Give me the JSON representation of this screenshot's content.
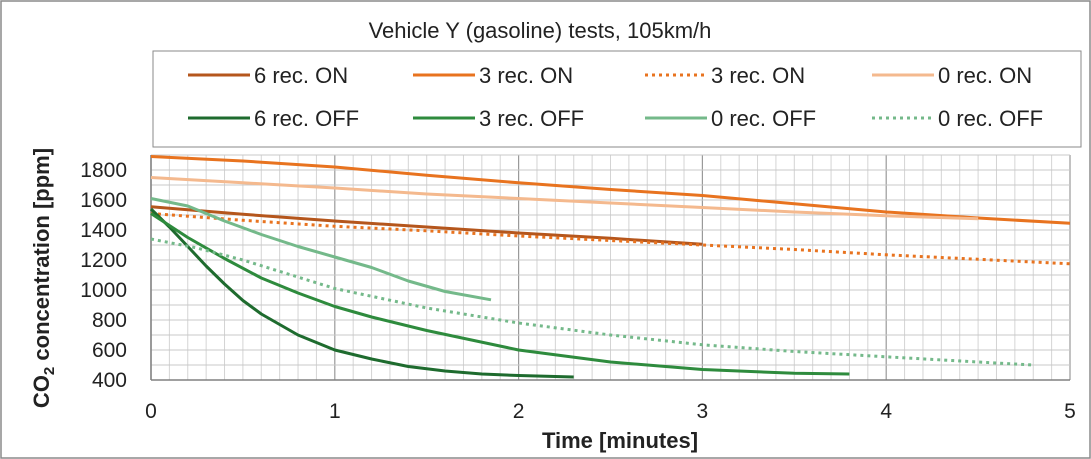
{
  "chart_data": {
    "type": "line",
    "title": "Vehicle Y (gasoline) tests, 105km/h",
    "xlabel": "Time [minutes]",
    "ylabel_main": "CO",
    "ylabel_sub": "2",
    "ylabel_rest": " concentration [ppm]",
    "xlim": [
      0,
      5
    ],
    "ylim": [
      400,
      1900
    ],
    "xticks": [
      "0",
      "1",
      "2",
      "3",
      "4",
      "5"
    ],
    "yticks": [
      "400",
      "600",
      "800",
      "1000",
      "1200",
      "1400",
      "1600",
      "1800"
    ],
    "grid": true,
    "legend_position": "top",
    "series": [
      {
        "name": "6 rec. ON",
        "color": "#b5561c",
        "dash": "solid",
        "width": 3,
        "x": [
          0,
          0.5,
          1,
          1.5,
          2,
          2.5,
          3
        ],
        "y": [
          1555,
          1505,
          1460,
          1420,
          1380,
          1345,
          1305
        ]
      },
      {
        "name": "3 rec. ON",
        "color": "#e8731f",
        "dash": "solid",
        "width": 3,
        "x": [
          0,
          0.5,
          1,
          1.5,
          2,
          2.5,
          3,
          3.5,
          4,
          4.5,
          5
        ],
        "y": [
          1890,
          1860,
          1820,
          1765,
          1715,
          1670,
          1630,
          1575,
          1520,
          1480,
          1445
        ]
      },
      {
        "name": "3 rec. ON",
        "color": "#e8731f",
        "dash": "dotted",
        "width": 3,
        "x": [
          0,
          0.5,
          1,
          1.5,
          2,
          2.5,
          3,
          3.5,
          4,
          4.5,
          5
        ],
        "y": [
          1510,
          1465,
          1425,
          1395,
          1360,
          1330,
          1300,
          1270,
          1235,
          1205,
          1175
        ]
      },
      {
        "name": "0 rec. ON",
        "color": "#f4b98e",
        "dash": "solid",
        "width": 3,
        "x": [
          0,
          0.5,
          1,
          1.5,
          2,
          2.5,
          3,
          3.5,
          4,
          4.5
        ],
        "y": [
          1750,
          1715,
          1680,
          1640,
          1610,
          1580,
          1550,
          1520,
          1495,
          1475
        ]
      },
      {
        "name": "6 rec. OFF",
        "color": "#1e6b2e",
        "dash": "solid",
        "width": 3,
        "x": [
          0,
          0.1,
          0.2,
          0.3,
          0.4,
          0.5,
          0.6,
          0.8,
          1.0,
          1.2,
          1.4,
          1.6,
          1.8,
          2.0,
          2.3
        ],
        "y": [
          1540,
          1420,
          1290,
          1160,
          1040,
          930,
          840,
          700,
          600,
          540,
          490,
          460,
          440,
          430,
          420
        ]
      },
      {
        "name": "3 rec. OFF",
        "color": "#2e8b3d",
        "dash": "solid",
        "width": 3,
        "x": [
          0,
          0.2,
          0.4,
          0.6,
          0.8,
          1.0,
          1.2,
          1.5,
          2.0,
          2.5,
          3.0,
          3.5,
          3.8
        ],
        "y": [
          1510,
          1350,
          1210,
          1080,
          980,
          890,
          820,
          730,
          600,
          520,
          470,
          445,
          440
        ]
      },
      {
        "name": "0 rec. OFF",
        "color": "#74b98a",
        "dash": "solid",
        "width": 3,
        "x": [
          0,
          0.2,
          0.4,
          0.6,
          0.8,
          1.0,
          1.2,
          1.4,
          1.6,
          1.85
        ],
        "y": [
          1610,
          1560,
          1460,
          1370,
          1290,
          1220,
          1150,
          1060,
          990,
          935
        ]
      },
      {
        "name": "0 rec. OFF",
        "color": "#74b98a",
        "dash": "dotted",
        "width": 3,
        "x": [
          0,
          0.25,
          0.5,
          1.0,
          1.5,
          2.0,
          2.5,
          3.0,
          3.5,
          4.0,
          4.5,
          4.8
        ],
        "y": [
          1340,
          1280,
          1200,
          1010,
          880,
          780,
          700,
          635,
          590,
          555,
          520,
          500
        ]
      }
    ]
  }
}
